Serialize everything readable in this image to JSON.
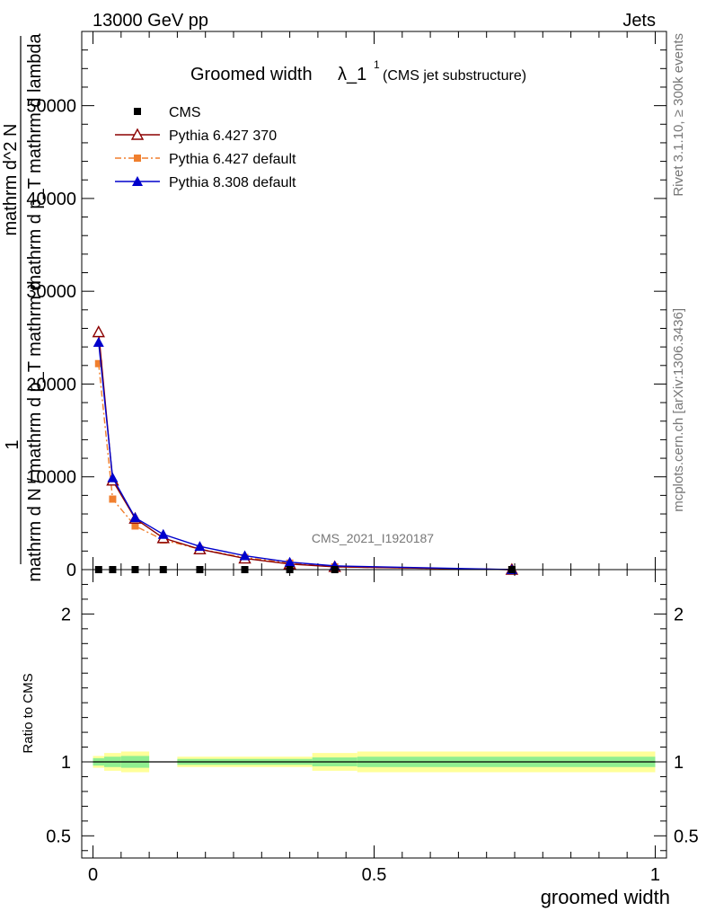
{
  "header": {
    "left": "13000 GeV pp",
    "right": "Jets"
  },
  "plot_title": {
    "main": "Groomed width",
    "symbol": "λ_1",
    "superscript": "1",
    "suffix": "(CMS jet substructure)"
  },
  "side_labels": {
    "rivet": "Rivet 3.1.10, ≥ 300k events",
    "mcplots": "mcplots.cern.ch [arXiv:1306.3436]"
  },
  "watermark": "CMS_2021_I1920187",
  "ylabel_main": {
    "numerator_top": "1",
    "denominator": "mathrm d N / mathrm d p_T mathrm d",
    "side": "mathrm d^2 N",
    "side2": "mathrm d p_T mathrm d lambda"
  },
  "ylabel_ratio": "Ratio to CMS",
  "xlabel": "groomed width",
  "legend": [
    {
      "label": "CMS",
      "color": "#000000",
      "marker": "square-filled",
      "line": "none"
    },
    {
      "label": "Pythia 6.427 370",
      "color": "#8b0000",
      "marker": "triangle-open",
      "line": "solid"
    },
    {
      "label": "Pythia 6.427 default",
      "color": "#f07f2e",
      "marker": "square-filled",
      "line": "dashdot"
    },
    {
      "label": "Pythia 8.308 default",
      "color": "#0000cc",
      "marker": "triangle-filled",
      "line": "solid"
    }
  ],
  "chart_data": {
    "type": "line",
    "main_panel": {
      "xlim": [
        -0.02,
        1.02
      ],
      "ylim": [
        0,
        58000
      ],
      "y_ticks": [
        {
          "value": 0,
          "label": "0"
        },
        {
          "value": 10000,
          "label": "10000"
        },
        {
          "value": 20000,
          "label": "20000"
        },
        {
          "value": 30000,
          "label": "30000"
        },
        {
          "value": 40000,
          "label": "40000"
        },
        {
          "value": 50000,
          "label": "50000"
        }
      ],
      "series": [
        {
          "name": "CMS",
          "color": "#000000",
          "x": [
            0.01,
            0.035,
            0.075,
            0.125,
            0.19,
            0.27,
            0.35,
            0.43,
            0.745
          ],
          "y": [
            0,
            0,
            0,
            0,
            0,
            0,
            0,
            0,
            0
          ]
        },
        {
          "name": "Pythia 6.427 370",
          "color": "#8b0000",
          "x": [
            0.01,
            0.035,
            0.075,
            0.125,
            0.19,
            0.27,
            0.35,
            0.43,
            0.745
          ],
          "y": [
            25600,
            9600,
            5500,
            3400,
            2200,
            1200,
            600,
            300,
            0
          ]
        },
        {
          "name": "Pythia 6.427 default",
          "color": "#f07f2e",
          "x": [
            0.01,
            0.035,
            0.075,
            0.125,
            0.19,
            0.27,
            0.35,
            0.43,
            0.745
          ],
          "y": [
            22200,
            7600,
            4700,
            3200,
            2200,
            1300,
            700,
            300,
            0
          ]
        },
        {
          "name": "Pythia 8.308 default",
          "color": "#0000cc",
          "x": [
            0.01,
            0.035,
            0.075,
            0.125,
            0.19,
            0.27,
            0.35,
            0.43,
            0.745
          ],
          "y": [
            24500,
            9900,
            5600,
            3800,
            2500,
            1500,
            800,
            400,
            0
          ]
        }
      ]
    },
    "ratio_panel": {
      "xlim": [
        -0.02,
        1.02
      ],
      "ylim": [
        0.35,
        2.3
      ],
      "y_ticks": [
        {
          "value": 0.5,
          "label": "0.5"
        },
        {
          "value": 1,
          "label": "1"
        },
        {
          "value": 2,
          "label": "2"
        }
      ],
      "x_ticks": [
        {
          "value": 0,
          "label": "0"
        },
        {
          "value": 0.5,
          "label": "0.5"
        },
        {
          "value": 1,
          "label": "1"
        }
      ],
      "bands": [
        {
          "x0": 0.0,
          "x1": 0.02,
          "inner": 0.025,
          "outer": 0.04
        },
        {
          "x0": 0.02,
          "x1": 0.05,
          "inner": 0.035,
          "outer": 0.06
        },
        {
          "x0": 0.05,
          "x1": 0.1,
          "inner": 0.04,
          "outer": 0.07
        },
        {
          "x0": 0.15,
          "x1": 0.39,
          "inner": 0.02,
          "outer": 0.035
        },
        {
          "x0": 0.39,
          "x1": 0.47,
          "inner": 0.03,
          "outer": 0.06
        },
        {
          "x0": 0.47,
          "x1": 1.0,
          "inner": 0.035,
          "outer": 0.07
        }
      ],
      "band_colors": {
        "inner": "#90ee90",
        "outer": "#ffff99"
      }
    }
  }
}
